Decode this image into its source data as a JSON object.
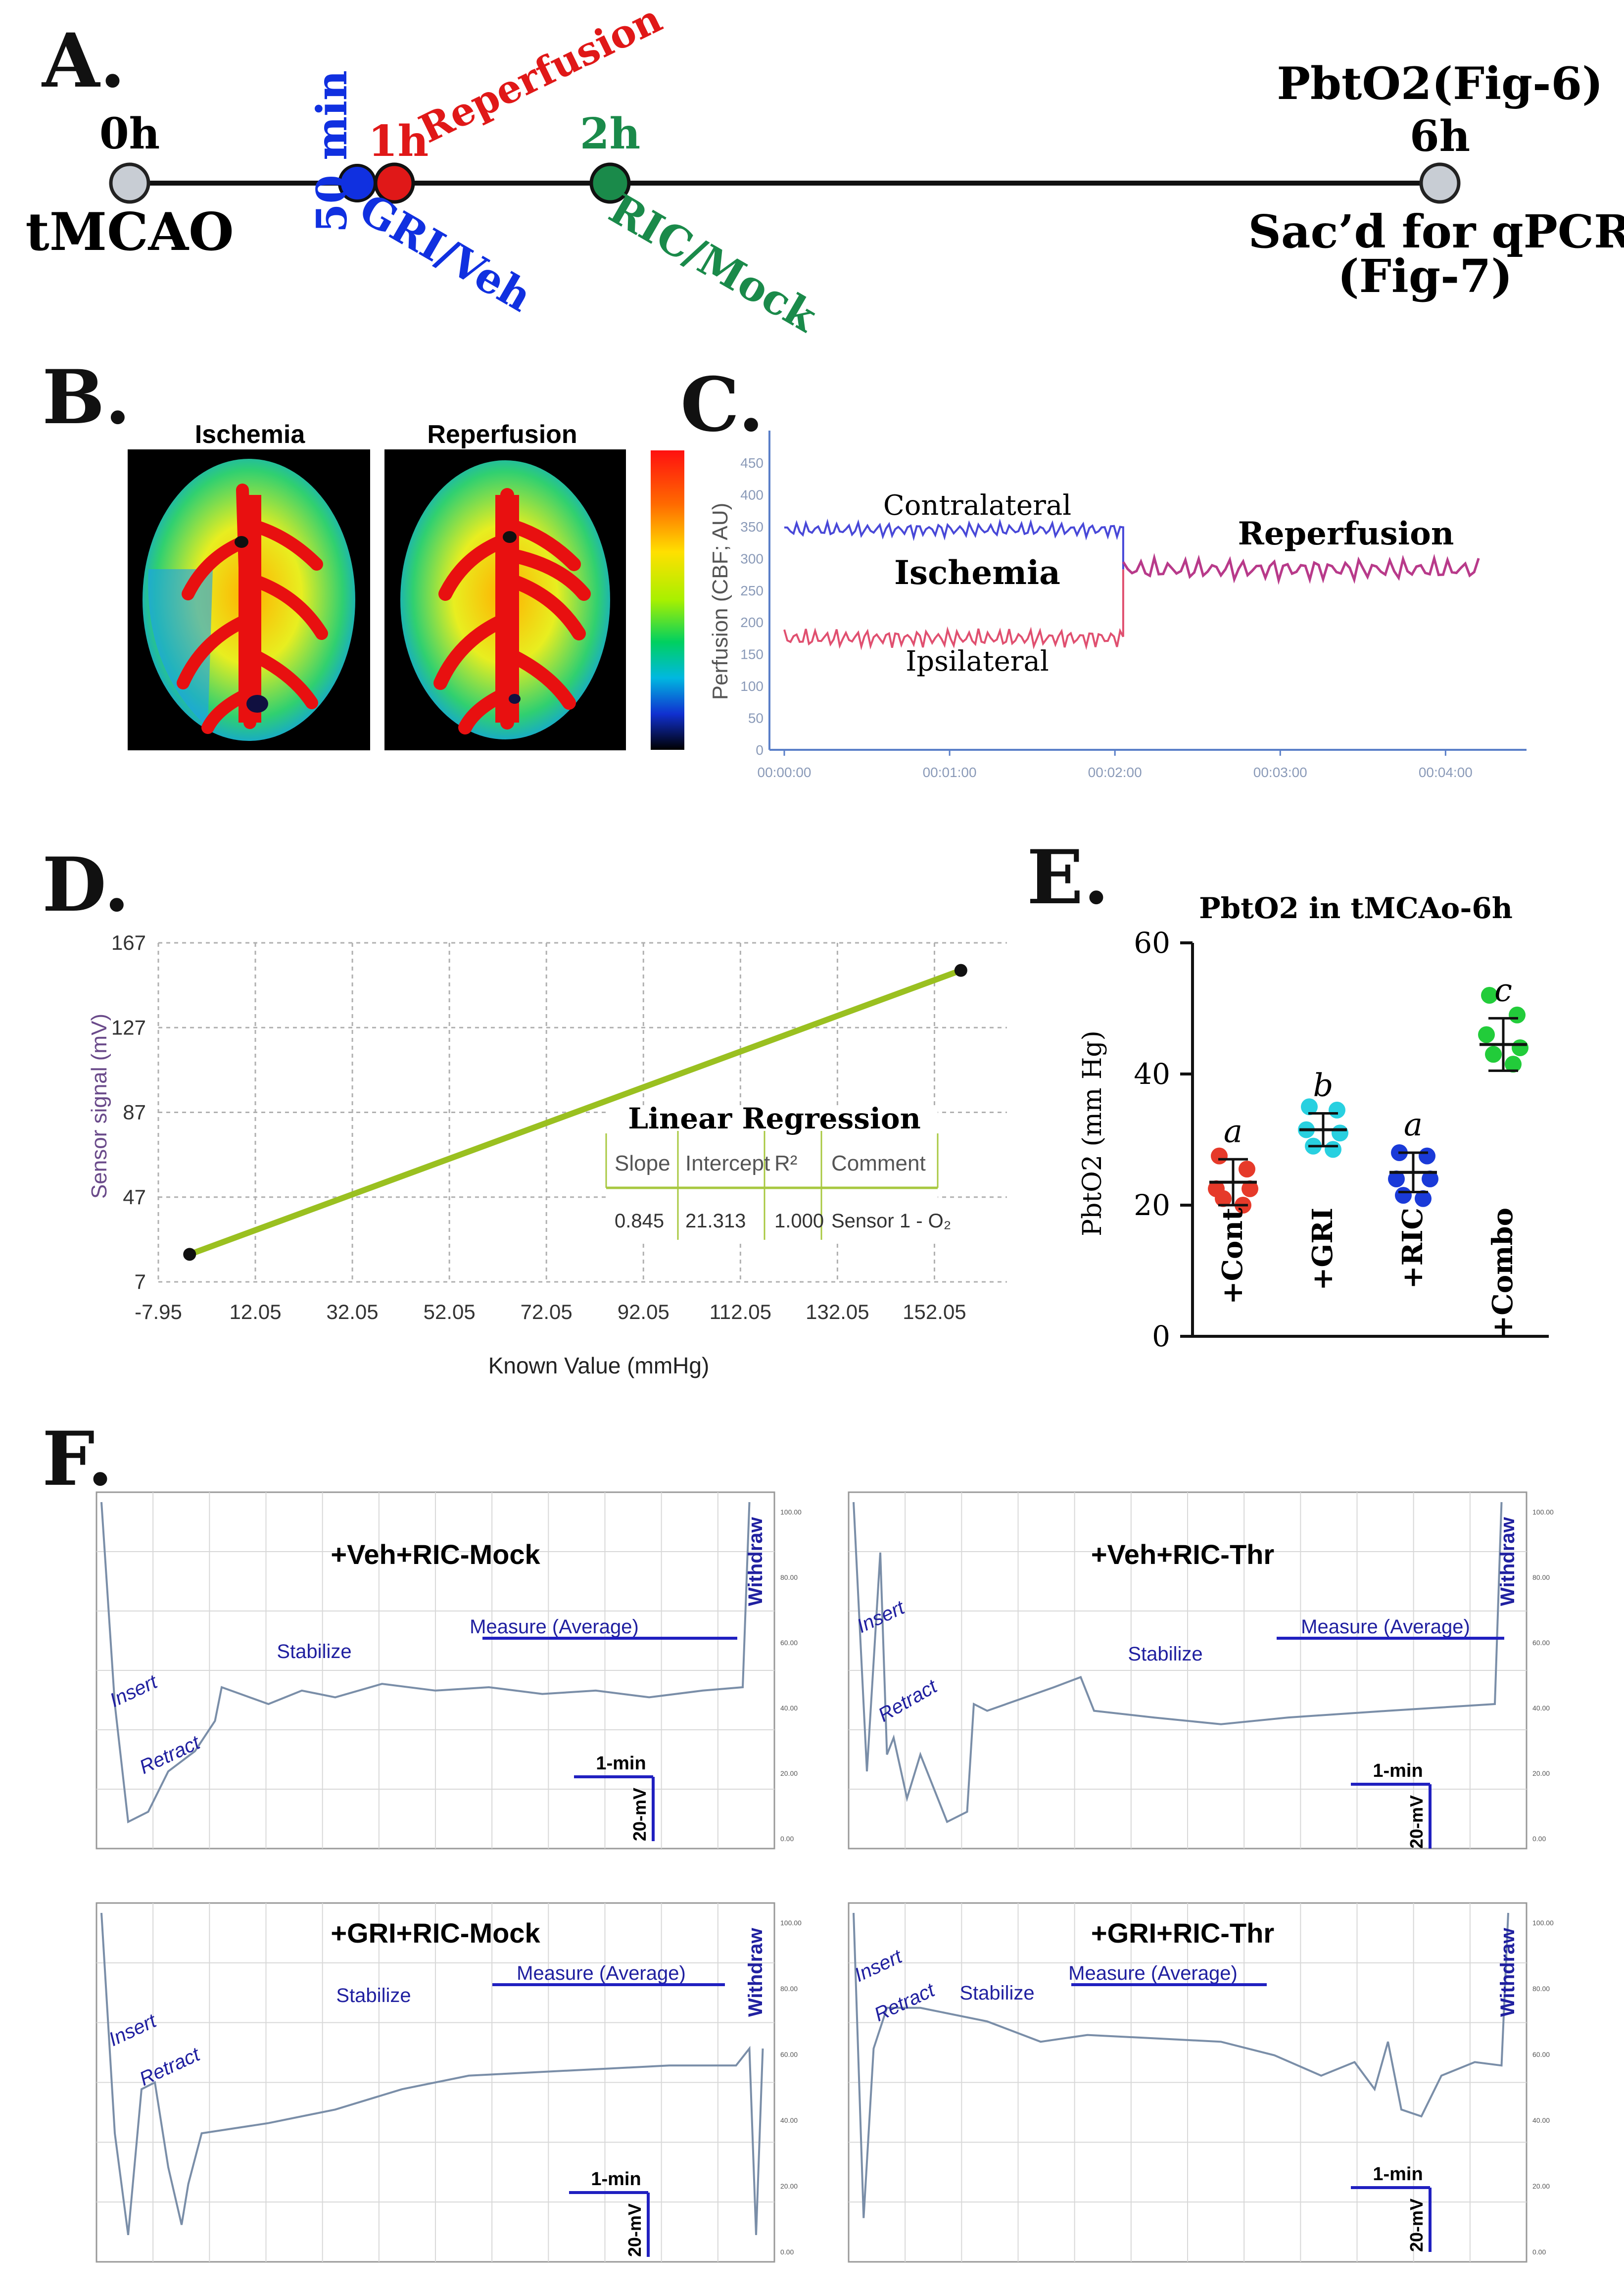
{
  "panels": {
    "a": "A.",
    "b": "B.",
    "c": "C.",
    "d": "D.",
    "e": "E.",
    "f": "F."
  },
  "timeline": {
    "t0": "0h",
    "start": "tMCAO",
    "t50": "50 min",
    "gri": "GRI/Veh",
    "t1": "1h",
    "reperfusion": "Reperfusion",
    "t2": "2h",
    "ric": "RIC/Mock",
    "pbto2": "PbtO2(Fig-6)",
    "t6": "6h",
    "sac": "Sac’d for qPCR",
    "fig7": "(Fig-7)",
    "colors": {
      "blue": "#1030e0",
      "red": "#e01818",
      "green": "#1a8a4a",
      "gray": "#c8cdd4"
    }
  },
  "imaging": {
    "ischemia": "Ischemia",
    "reperfusion": "Reperfusion"
  },
  "perfusion": {
    "ylabel": "Perfusion (CBF; AU)",
    "yticks": [
      0,
      50,
      100,
      150,
      200,
      250,
      300,
      350,
      400,
      450
    ],
    "xticks": [
      "00:00:00",
      "00:01:00",
      "00:02:00",
      "00:03:00",
      "00:04:00"
    ],
    "contralateral": "Contralateral",
    "ischemia": "Ischemia",
    "ipsilateral": "Ipsilateral",
    "reperfusion": "Reperfusion",
    "series": {
      "contralateral_mean": 345,
      "ipsilateral_mean": 175,
      "reperfusion_mean": 283,
      "switch_time_min": 2.05,
      "end_time_min": 4.2
    }
  },
  "chart_data": [
    {
      "type": "line",
      "title": "Linear Regression",
      "xlabel": "Known Value (mmHg)",
      "ylabel": "Sensor signal (mV)",
      "xticks": [
        "-7.95",
        "12.05",
        "32.05",
        "52.05",
        "72.05",
        "92.05",
        "112.05",
        "132.05",
        "152.05"
      ],
      "yticks": [
        "7",
        "47",
        "87",
        "127",
        "167"
      ],
      "x": [
        -1.5,
        157.5
      ],
      "y": [
        20,
        154
      ],
      "xlim": [
        -7.95,
        167
      ],
      "ylim": [
        7,
        167
      ],
      "table": {
        "headers": [
          "Slope",
          "Intercept",
          "R²",
          "Comment"
        ],
        "row": [
          "0.845",
          "21.313",
          "1.000",
          "Sensor 1 - O₂"
        ]
      }
    },
    {
      "type": "scatter",
      "title": "PbtO2 in tMCAo-6h",
      "ylabel": "PbtO2 (mm Hg)",
      "yticks": [
        "0",
        "20",
        "40",
        "60"
      ],
      "ylim": [
        0,
        60
      ],
      "categories": [
        "+Cont",
        "+GRI",
        "+RIC",
        "+Combo"
      ],
      "letters": [
        "a",
        "b",
        "a",
        "c"
      ],
      "series": [
        {
          "name": "+Cont",
          "color": "#e63a2a",
          "mean": 23.5,
          "sd": 3.5,
          "points": [
            27.5,
            25.5,
            22.5,
            22.5,
            21,
            20
          ]
        },
        {
          "name": "+GRI",
          "color": "#28d0e0",
          "mean": 31.5,
          "sd": 2.5,
          "points": [
            35,
            34.5,
            31.5,
            31,
            29,
            28.5
          ]
        },
        {
          "name": "+RIC",
          "color": "#1a3ad8",
          "mean": 25,
          "sd": 3,
          "points": [
            28,
            27.5,
            24,
            24,
            21.5,
            21
          ]
        },
        {
          "name": "+Combo",
          "color": "#22cc3a",
          "mean": 44.5,
          "sd": 4,
          "points": [
            52,
            49,
            46,
            44,
            43,
            41.5
          ]
        }
      ]
    }
  ],
  "traces": {
    "insert": "Insert",
    "retract": "Retract",
    "stabilize": "Stabilize",
    "measure": "Measure (Average)",
    "withdraw": "Withdraw",
    "minute": "1-min",
    "mv": "20-mV",
    "right_ticks": [
      "100.00",
      "80.00",
      "60.00",
      "40.00",
      "20.00",
      "0.00"
    ],
    "panels": [
      {
        "title": "+Veh+RIC-Mock"
      },
      {
        "title": "+Veh+RIC-Thr"
      },
      {
        "title": "+GRI+RIC-Mock"
      },
      {
        "title": "+GRI+RIC-Thr"
      }
    ]
  }
}
